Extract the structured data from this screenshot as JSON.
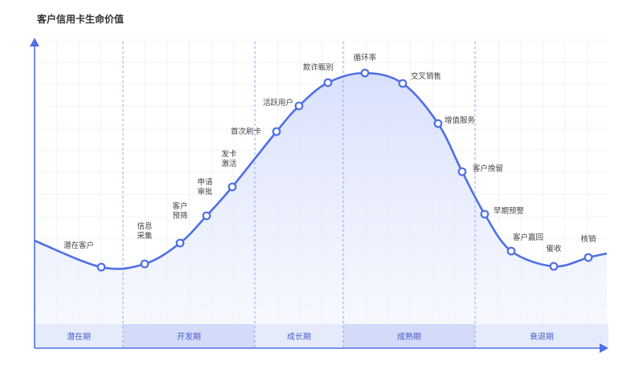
{
  "title": "客户信用卡生命价值",
  "colors": {
    "curve": "#4f6fe6",
    "fill": "#dfe6ff",
    "band_light": "#e6ebfb",
    "band_dark": "#d3dbf8",
    "stage_text": "#4a5fc8",
    "axis": "#4f6fe6"
  },
  "stages": [
    {
      "label": "潜在期",
      "from": 0,
      "to": 1
    },
    {
      "label": "开发期",
      "from": 1,
      "to": 4
    },
    {
      "label": "成长期",
      "from": 4,
      "to": 7
    },
    {
      "label": "成熟期",
      "from": 7,
      "to": 10
    },
    {
      "label": "衰退期",
      "from": 10,
      "to": 13
    }
  ],
  "points": [
    {
      "lines": [
        "潜在客户"
      ]
    },
    {
      "lines": [
        "信息",
        "采集"
      ]
    },
    {
      "lines": [
        "客户",
        "预筛"
      ]
    },
    {
      "lines": [
        "申请",
        "审批"
      ]
    },
    {
      "lines": [
        "发卡",
        "激活"
      ]
    },
    {
      "lines": [
        "首次刷卡"
      ]
    },
    {
      "lines": [
        "活跃用户"
      ]
    },
    {
      "lines": [
        "欺诈甄别"
      ]
    },
    {
      "lines": [
        "循环率"
      ]
    },
    {
      "lines": [
        "交叉销售"
      ]
    },
    {
      "lines": [
        "增值服务"
      ]
    },
    {
      "lines": [
        "客户挽留"
      ]
    },
    {
      "lines": [
        "早期预警"
      ]
    },
    {
      "lines": [
        "客户赢回"
      ]
    },
    {
      "lines": [
        "催收"
      ]
    },
    {
      "lines": [
        "核销"
      ]
    }
  ]
}
